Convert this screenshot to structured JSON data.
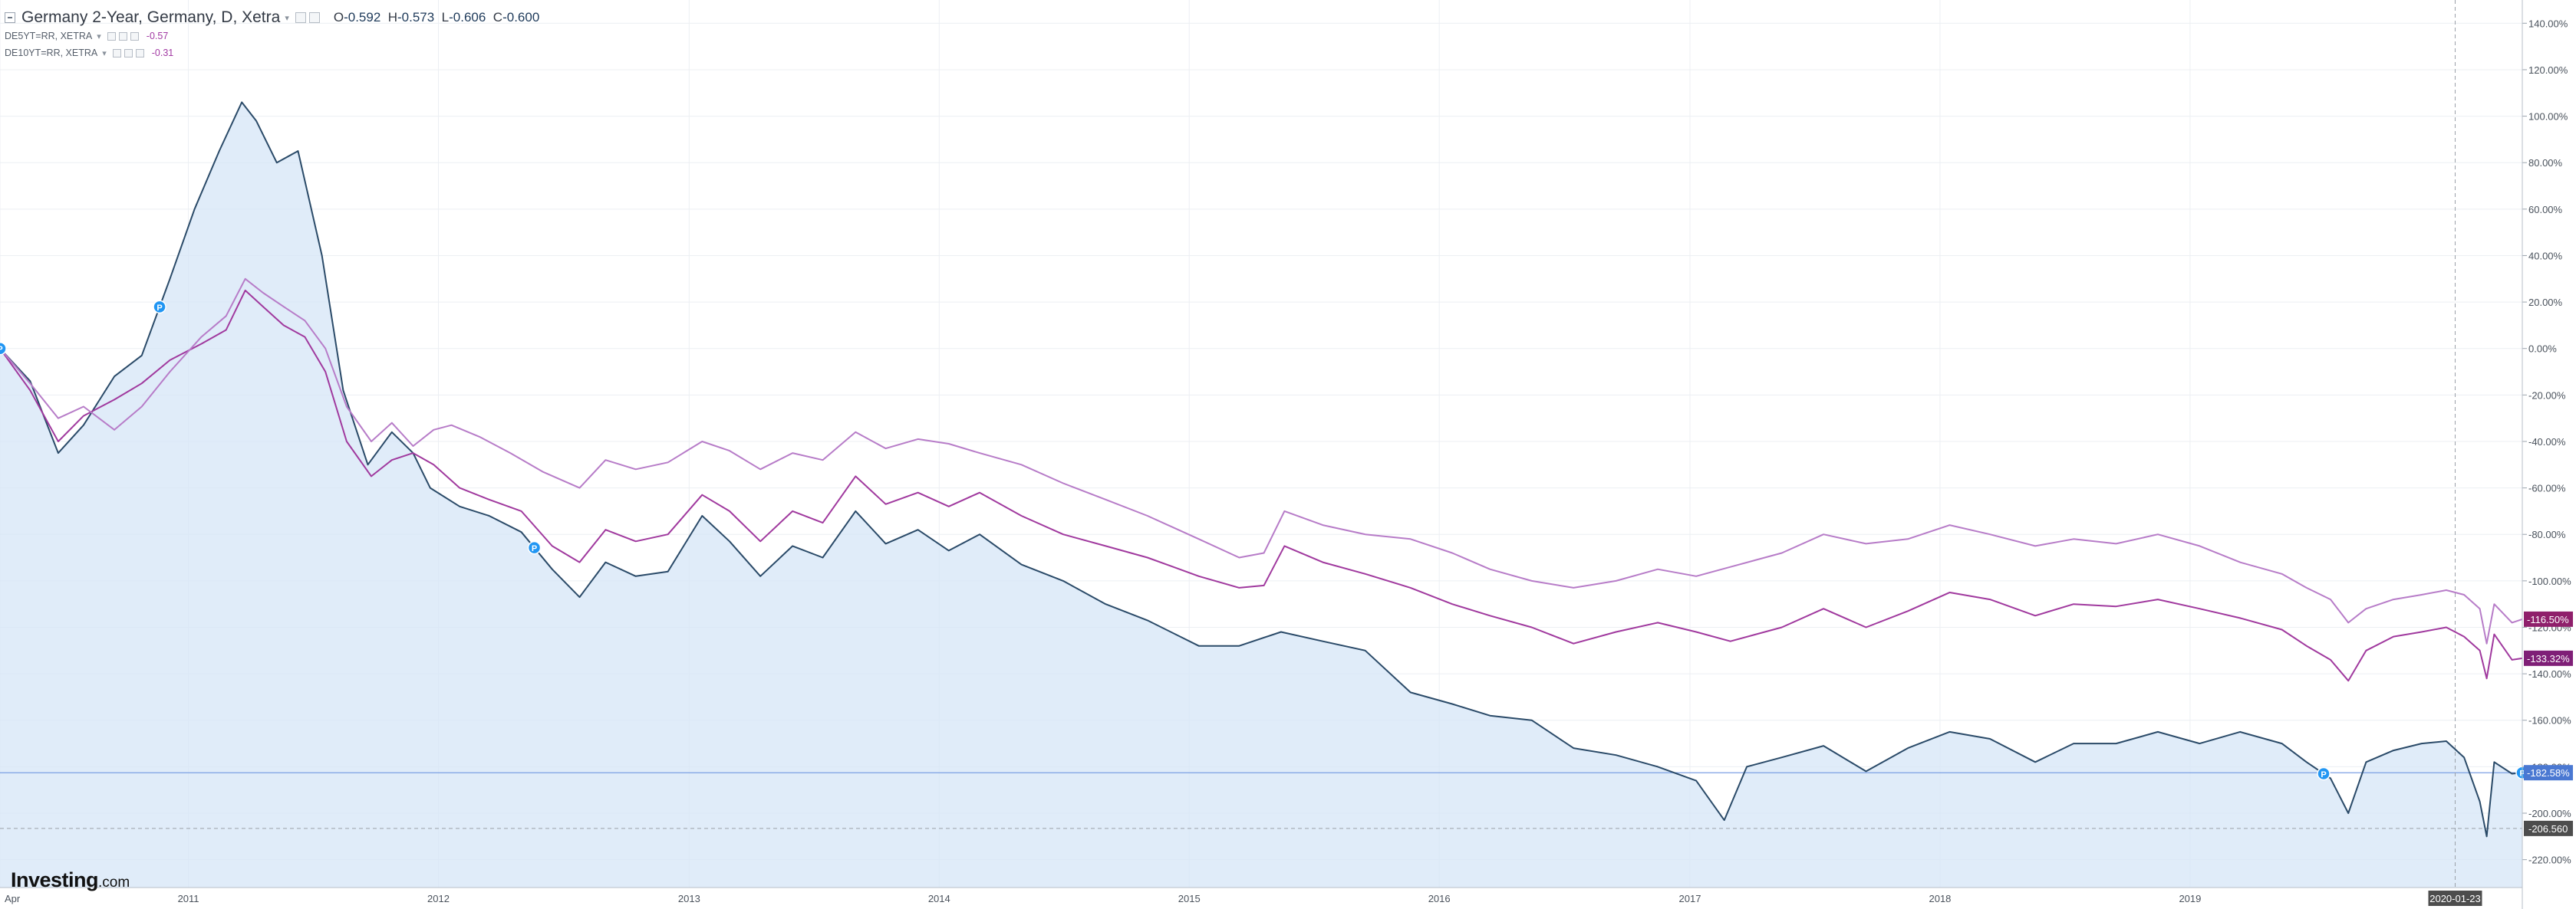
{
  "legend": {
    "main": {
      "title": "Germany 2-Year, Germany, D, Xetra",
      "caret": "▾",
      "o_key": "O",
      "o": "-0.592",
      "h_key": "H",
      "h": "-0.573",
      "l_key": "L",
      "l": "-0.606",
      "c_key": "C",
      "c": "-0.600"
    },
    "series_a": {
      "title": "DE5YT=RR, XETRA",
      "caret": "▾",
      "value": "-0.57"
    },
    "series_b": {
      "title": "DE10YT=RR, XETRA",
      "caret": "▾",
      "value": "-0.31"
    }
  },
  "logo": {
    "main": "Investing",
    "suffix": ".com"
  },
  "colors": {
    "main_line": "#2a4a68",
    "main_fill": "#d6e6f7",
    "series_a": "#a0399e",
    "series_b": "#b77cc8",
    "badge_main": "#4a78d2",
    "badge_a": "#8f1f6b",
    "badge_b": "#7f1f77",
    "badge_low": "#4d4d4d",
    "event_marker": "#2196f3"
  },
  "chart_data": {
    "type": "line",
    "x_tick_labels": [
      "Apr",
      "2011",
      "2012",
      "2013",
      "2014",
      "2015",
      "2016",
      "2017",
      "2018",
      "2019",
      "2020-01-23"
    ],
    "x_ticks": [
      "2010-04-01",
      "2011-01-01",
      "2012-01-01",
      "2013-01-01",
      "2014-01-01",
      "2015-01-01",
      "2016-01-01",
      "2017-01-01",
      "2018-01-01",
      "2019-01-01",
      "2020-01-23"
    ],
    "x_range": [
      "2010-04-01",
      "2020-04-30"
    ],
    "y_tick_labels": [
      "140.00%",
      "120.00%",
      "100.00%",
      "80.00%",
      "60.00%",
      "40.00%",
      "20.00%",
      "0.00%",
      "-20.00%",
      "-40.00%",
      "-60.00%",
      "-80.00%",
      "-100.00%",
      "-120.00%",
      "-140.00%",
      "-160.00%",
      "-180.00%",
      "-200.00%",
      "-220.00%"
    ],
    "ylim": [
      -232,
      150
    ],
    "grid": true,
    "crosshair": {
      "date": "2020-01-23",
      "value": -206.56,
      "label": "-206.560",
      "value_key": "badge_low"
    },
    "reference_line": {
      "value": -182.58
    },
    "series": [
      {
        "name": "Germany 2-Year",
        "color_key": "main_line",
        "fill_key": "main_fill",
        "area": true,
        "badge": "-182.58%",
        "badge_value": -182.58,
        "badge_color_key": "badge_main",
        "points": [
          [
            "2010-04-01",
            0
          ],
          [
            "2010-05-15",
            -14
          ],
          [
            "2010-06-25",
            -45
          ],
          [
            "2010-08-01",
            -33
          ],
          [
            "2010-09-15",
            -12
          ],
          [
            "2010-10-25",
            -3
          ],
          [
            "2010-12-05",
            30
          ],
          [
            "2011-01-10",
            60
          ],
          [
            "2011-02-15",
            85
          ],
          [
            "2011-03-20",
            106
          ],
          [
            "2011-04-10",
            98
          ],
          [
            "2011-05-10",
            80
          ],
          [
            "2011-06-10",
            85
          ],
          [
            "2011-07-15",
            40
          ],
          [
            "2011-08-15",
            -18
          ],
          [
            "2011-09-20",
            -50
          ],
          [
            "2011-10-25",
            -36
          ],
          [
            "2011-11-25",
            -45
          ],
          [
            "2011-12-20",
            -60
          ],
          [
            "2012-02-01",
            -68
          ],
          [
            "2012-03-15",
            -72
          ],
          [
            "2012-05-01",
            -79
          ],
          [
            "2012-06-15",
            -95
          ],
          [
            "2012-07-25",
            -107
          ],
          [
            "2012-09-01",
            -92
          ],
          [
            "2012-10-15",
            -98
          ],
          [
            "2012-12-01",
            -96
          ],
          [
            "2013-01-20",
            -72
          ],
          [
            "2013-03-01",
            -83
          ],
          [
            "2013-04-15",
            -98
          ],
          [
            "2013-06-01",
            -85
          ],
          [
            "2013-07-15",
            -90
          ],
          [
            "2013-09-01",
            -70
          ],
          [
            "2013-10-15",
            -84
          ],
          [
            "2013-12-01",
            -78
          ],
          [
            "2014-01-15",
            -87
          ],
          [
            "2014-03-01",
            -80
          ],
          [
            "2014-05-01",
            -93
          ],
          [
            "2014-07-01",
            -100
          ],
          [
            "2014-09-01",
            -110
          ],
          [
            "2014-11-01",
            -117
          ],
          [
            "2015-01-15",
            -128
          ],
          [
            "2015-03-15",
            -128
          ],
          [
            "2015-05-15",
            -122
          ],
          [
            "2015-07-15",
            -126
          ],
          [
            "2015-09-15",
            -130
          ],
          [
            "2015-11-20",
            -148
          ],
          [
            "2016-01-20",
            -153
          ],
          [
            "2016-03-15",
            -158
          ],
          [
            "2016-05-15",
            -160
          ],
          [
            "2016-07-15",
            -172
          ],
          [
            "2016-09-15",
            -175
          ],
          [
            "2016-11-15",
            -180
          ],
          [
            "2017-01-10",
            -186
          ],
          [
            "2017-02-20",
            -203
          ],
          [
            "2017-03-25",
            -180
          ],
          [
            "2017-05-15",
            -176
          ],
          [
            "2017-07-15",
            -171
          ],
          [
            "2017-09-15",
            -182
          ],
          [
            "2017-11-15",
            -172
          ],
          [
            "2018-01-15",
            -165
          ],
          [
            "2018-03-15",
            -168
          ],
          [
            "2018-05-20",
            -178
          ],
          [
            "2018-07-15",
            -170
          ],
          [
            "2018-09-15",
            -170
          ],
          [
            "2018-11-15",
            -165
          ],
          [
            "2019-01-15",
            -170
          ],
          [
            "2019-03-15",
            -165
          ],
          [
            "2019-05-15",
            -170
          ],
          [
            "2019-06-20",
            -178
          ],
          [
            "2019-07-25",
            -185
          ],
          [
            "2019-08-20",
            -200
          ],
          [
            "2019-09-15",
            -178
          ],
          [
            "2019-10-25",
            -173
          ],
          [
            "2019-12-05",
            -170
          ],
          [
            "2020-01-10",
            -169
          ],
          [
            "2020-02-05",
            -176
          ],
          [
            "2020-02-28",
            -195
          ],
          [
            "2020-03-09",
            -210
          ],
          [
            "2020-03-20",
            -178
          ],
          [
            "2020-04-15",
            -183
          ],
          [
            "2020-04-30",
            -182.58
          ]
        ]
      },
      {
        "name": "DE5YT=RR",
        "color_key": "series_a",
        "area": false,
        "badge": "-133.32%",
        "badge_value": -133.32,
        "badge_color_key": "badge_b",
        "points": [
          [
            "2010-04-01",
            0
          ],
          [
            "2010-05-15",
            -18
          ],
          [
            "2010-06-25",
            -40
          ],
          [
            "2010-08-01",
            -29
          ],
          [
            "2010-09-15",
            -22
          ],
          [
            "2010-10-25",
            -15
          ],
          [
            "2010-12-05",
            -5
          ],
          [
            "2011-01-20",
            2
          ],
          [
            "2011-02-25",
            8
          ],
          [
            "2011-03-25",
            25
          ],
          [
            "2011-04-20",
            18
          ],
          [
            "2011-05-20",
            10
          ],
          [
            "2011-06-20",
            5
          ],
          [
            "2011-07-20",
            -10
          ],
          [
            "2011-08-20",
            -40
          ],
          [
            "2011-09-25",
            -55
          ],
          [
            "2011-10-25",
            -48
          ],
          [
            "2011-11-25",
            -45
          ],
          [
            "2011-12-25",
            -50
          ],
          [
            "2012-02-01",
            -60
          ],
          [
            "2012-03-15",
            -65
          ],
          [
            "2012-05-01",
            -70
          ],
          [
            "2012-06-15",
            -85
          ],
          [
            "2012-07-25",
            -92
          ],
          [
            "2012-09-01",
            -78
          ],
          [
            "2012-10-15",
            -83
          ],
          [
            "2012-12-01",
            -80
          ],
          [
            "2013-01-20",
            -63
          ],
          [
            "2013-03-01",
            -70
          ],
          [
            "2013-04-15",
            -83
          ],
          [
            "2013-06-01",
            -70
          ],
          [
            "2013-07-15",
            -75
          ],
          [
            "2013-09-01",
            -55
          ],
          [
            "2013-10-15",
            -67
          ],
          [
            "2013-12-01",
            -62
          ],
          [
            "2014-01-15",
            -68
          ],
          [
            "2014-03-01",
            -62
          ],
          [
            "2014-05-01",
            -72
          ],
          [
            "2014-07-01",
            -80
          ],
          [
            "2014-09-01",
            -85
          ],
          [
            "2014-11-01",
            -90
          ],
          [
            "2015-01-15",
            -98
          ],
          [
            "2015-03-15",
            -103
          ],
          [
            "2015-04-20",
            -102
          ],
          [
            "2015-05-20",
            -85
          ],
          [
            "2015-07-15",
            -92
          ],
          [
            "2015-09-15",
            -97
          ],
          [
            "2015-11-20",
            -103
          ],
          [
            "2016-01-20",
            -110
          ],
          [
            "2016-03-15",
            -115
          ],
          [
            "2016-05-15",
            -120
          ],
          [
            "2016-07-15",
            -127
          ],
          [
            "2016-09-15",
            -122
          ],
          [
            "2016-11-15",
            -118
          ],
          [
            "2017-01-10",
            -122
          ],
          [
            "2017-03-01",
            -126
          ],
          [
            "2017-05-15",
            -120
          ],
          [
            "2017-07-15",
            -112
          ],
          [
            "2017-09-15",
            -120
          ],
          [
            "2017-11-15",
            -113
          ],
          [
            "2018-01-15",
            -105
          ],
          [
            "2018-03-15",
            -108
          ],
          [
            "2018-05-20",
            -115
          ],
          [
            "2018-07-15",
            -110
          ],
          [
            "2018-09-15",
            -111
          ],
          [
            "2018-11-15",
            -108
          ],
          [
            "2019-01-15",
            -112
          ],
          [
            "2019-03-15",
            -116
          ],
          [
            "2019-05-15",
            -121
          ],
          [
            "2019-06-20",
            -128
          ],
          [
            "2019-07-25",
            -134
          ],
          [
            "2019-08-20",
            -143
          ],
          [
            "2019-09-15",
            -130
          ],
          [
            "2019-10-25",
            -124
          ],
          [
            "2019-12-05",
            -122
          ],
          [
            "2020-01-10",
            -120
          ],
          [
            "2020-02-05",
            -124
          ],
          [
            "2020-02-28",
            -130
          ],
          [
            "2020-03-09",
            -142
          ],
          [
            "2020-03-20",
            -123
          ],
          [
            "2020-04-15",
            -134
          ],
          [
            "2020-04-30",
            -133.32
          ]
        ]
      },
      {
        "name": "DE10YT=RR",
        "color_key": "series_b",
        "area": false,
        "badge": "-116.50%",
        "badge_value": -116.5,
        "badge_color_key": "badge_a",
        "points": [
          [
            "2010-04-01",
            0
          ],
          [
            "2010-05-15",
            -15
          ],
          [
            "2010-06-25",
            -30
          ],
          [
            "2010-08-01",
            -25
          ],
          [
            "2010-09-15",
            -35
          ],
          [
            "2010-10-25",
            -25
          ],
          [
            "2010-12-05",
            -10
          ],
          [
            "2011-01-20",
            5
          ],
          [
            "2011-02-25",
            14
          ],
          [
            "2011-03-25",
            30
          ],
          [
            "2011-04-20",
            24
          ],
          [
            "2011-05-20",
            18
          ],
          [
            "2011-06-20",
            12
          ],
          [
            "2011-07-20",
            0
          ],
          [
            "2011-08-20",
            -25
          ],
          [
            "2011-09-25",
            -40
          ],
          [
            "2011-10-25",
            -32
          ],
          [
            "2011-11-25",
            -42
          ],
          [
            "2011-12-25",
            -35
          ],
          [
            "2012-01-20",
            -33
          ],
          [
            "2012-03-01",
            -38
          ],
          [
            "2012-04-15",
            -45
          ],
          [
            "2012-06-01",
            -53
          ],
          [
            "2012-07-25",
            -60
          ],
          [
            "2012-09-01",
            -48
          ],
          [
            "2012-10-15",
            -52
          ],
          [
            "2012-12-01",
            -49
          ],
          [
            "2013-01-20",
            -40
          ],
          [
            "2013-03-01",
            -44
          ],
          [
            "2013-04-15",
            -52
          ],
          [
            "2013-06-01",
            -45
          ],
          [
            "2013-07-15",
            -48
          ],
          [
            "2013-09-01",
            -36
          ],
          [
            "2013-10-15",
            -43
          ],
          [
            "2013-12-01",
            -39
          ],
          [
            "2014-01-15",
            -41
          ],
          [
            "2014-03-01",
            -45
          ],
          [
            "2014-05-01",
            -50
          ],
          [
            "2014-07-01",
            -58
          ],
          [
            "2014-09-01",
            -65
          ],
          [
            "2014-11-01",
            -72
          ],
          [
            "2015-01-15",
            -82
          ],
          [
            "2015-03-15",
            -90
          ],
          [
            "2015-04-20",
            -88
          ],
          [
            "2015-05-20",
            -70
          ],
          [
            "2015-07-15",
            -76
          ],
          [
            "2015-09-15",
            -80
          ],
          [
            "2015-11-20",
            -82
          ],
          [
            "2016-01-20",
            -88
          ],
          [
            "2016-03-15",
            -95
          ],
          [
            "2016-05-15",
            -100
          ],
          [
            "2016-07-15",
            -103
          ],
          [
            "2016-09-15",
            -100
          ],
          [
            "2016-11-15",
            -95
          ],
          [
            "2017-01-10",
            -98
          ],
          [
            "2017-03-01",
            -94
          ],
          [
            "2017-05-15",
            -88
          ],
          [
            "2017-07-15",
            -80
          ],
          [
            "2017-09-15",
            -84
          ],
          [
            "2017-11-15",
            -82
          ],
          [
            "2018-01-15",
            -76
          ],
          [
            "2018-03-15",
            -80
          ],
          [
            "2018-05-20",
            -85
          ],
          [
            "2018-07-15",
            -82
          ],
          [
            "2018-09-15",
            -84
          ],
          [
            "2018-11-15",
            -80
          ],
          [
            "2019-01-15",
            -85
          ],
          [
            "2019-03-15",
            -92
          ],
          [
            "2019-05-15",
            -97
          ],
          [
            "2019-06-20",
            -103
          ],
          [
            "2019-07-25",
            -108
          ],
          [
            "2019-08-20",
            -118
          ],
          [
            "2019-09-15",
            -112
          ],
          [
            "2019-10-25",
            -108
          ],
          [
            "2019-12-05",
            -106
          ],
          [
            "2020-01-10",
            -104
          ],
          [
            "2020-02-05",
            -106
          ],
          [
            "2020-02-28",
            -112
          ],
          [
            "2020-03-09",
            -127
          ],
          [
            "2020-03-20",
            -110
          ],
          [
            "2020-04-15",
            -118
          ],
          [
            "2020-04-30",
            -116.5
          ]
        ]
      }
    ],
    "event_markers": [
      {
        "series": 0,
        "date": "2010-04-01",
        "label": "P"
      },
      {
        "series": 0,
        "date": "2010-11-20",
        "label": "P"
      },
      {
        "series": 0,
        "date": "2012-05-20",
        "label": "P"
      },
      {
        "series": 0,
        "date": "2019-07-15",
        "label": "P"
      },
      {
        "series": 0,
        "date": "2020-04-30",
        "label": "P"
      }
    ]
  }
}
